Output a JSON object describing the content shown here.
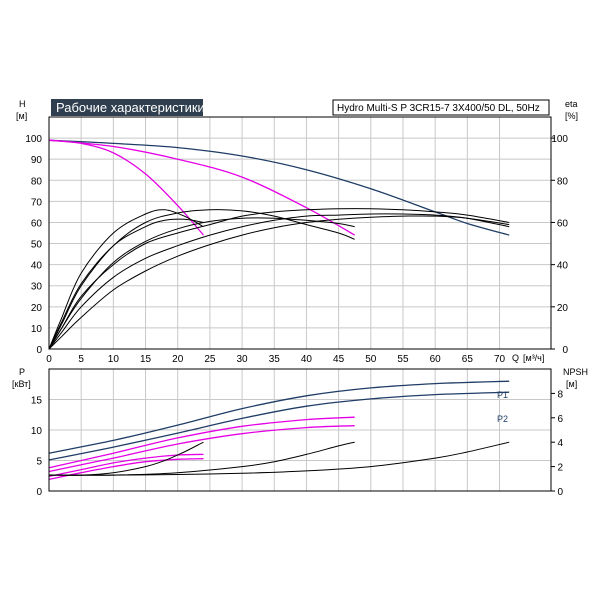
{
  "title": "Рабочие характеристики",
  "model": "Hydro Multi-S P 3CR15-7 3X400/50 DL, 50Hz",
  "colors": {
    "navy": "#1f3d66",
    "magenta": "#e600e6",
    "black": "#000000",
    "grid": "#c8c8c8",
    "title_bg": "#2f3f4f"
  },
  "chart_data": [
    {
      "type": "line",
      "panel": "head",
      "ylabel": "H",
      "yunit": "[м]",
      "y2label": "eta",
      "y2unit": "[%]",
      "xlabel": "Q",
      "xunit": "[м³/ч]",
      "xlim": [
        0,
        78
      ],
      "ylim": [
        0,
        110
      ],
      "y2lim": [
        0,
        110
      ],
      "x_ticks": [
        0,
        5,
        10,
        15,
        20,
        25,
        30,
        35,
        40,
        45,
        50,
        55,
        60,
        65,
        70
      ],
      "y_ticks": [
        0,
        10,
        20,
        30,
        40,
        50,
        60,
        70,
        80,
        90,
        100
      ],
      "y2_ticks": [
        0,
        20,
        40,
        60,
        80,
        100
      ],
      "grid": true,
      "series": [
        {
          "group": "H",
          "color": "navy",
          "x": [
            0,
            10,
            20,
            30,
            40,
            50,
            60,
            65,
            71.5
          ],
          "y": [
            99,
            97.5,
            95.5,
            91.5,
            85,
            76,
            65,
            59.5,
            54
          ]
        },
        {
          "group": "H",
          "color": "magenta",
          "x": [
            0,
            10,
            20,
            30,
            40,
            47.5
          ],
          "y": [
            99,
            96,
            90,
            81.5,
            67,
            54
          ]
        },
        {
          "group": "H",
          "color": "magenta",
          "x": [
            0,
            5,
            10,
            15,
            20,
            24
          ],
          "y": [
            99,
            97.5,
            93,
            83,
            68,
            54
          ]
        },
        {
          "group": "eta",
          "color": "black",
          "x": [
            0,
            2,
            5,
            10,
            15,
            20,
            25,
            30,
            35,
            40,
            45,
            50,
            55,
            60,
            65,
            71.5
          ],
          "y": [
            0,
            10,
            25,
            40,
            50,
            55,
            59,
            63,
            65,
            66,
            66.5,
            66.5,
            66,
            65,
            63.5,
            60
          ]
        },
        {
          "group": "eta",
          "color": "black",
          "x": [
            0,
            2,
            5,
            10,
            15,
            20,
            25,
            30,
            35,
            40,
            45,
            50,
            55,
            60,
            65,
            71.5
          ],
          "y": [
            0,
            8,
            20,
            34,
            43,
            49,
            54,
            58,
            61,
            63,
            63.5,
            64,
            64,
            63.5,
            62,
            58
          ]
        },
        {
          "group": "eta",
          "color": "black",
          "x": [
            0,
            2,
            5,
            10,
            15,
            20,
            25,
            30,
            35,
            40,
            45,
            50,
            55,
            60,
            65,
            71.5
          ],
          "y": [
            0,
            6,
            15,
            28,
            37,
            44,
            49.5,
            54,
            57.5,
            60,
            61.5,
            62.5,
            63,
            63,
            62,
            59
          ]
        },
        {
          "group": "eta",
          "color": "black",
          "x": [
            0,
            2,
            5,
            10,
            15,
            20,
            25,
            30,
            35,
            40,
            45,
            47.5
          ],
          "y": [
            0,
            12,
            30,
            49,
            60,
            64.5,
            66,
            65.5,
            63,
            59,
            55,
            52
          ]
        },
        {
          "group": "eta",
          "color": "black",
          "x": [
            0,
            2,
            5,
            10,
            15,
            20,
            25,
            30,
            35,
            40,
            45,
            47.5
          ],
          "y": [
            0,
            10,
            24,
            41,
            51,
            57,
            60.5,
            62,
            62,
            61,
            59.5,
            58
          ]
        },
        {
          "group": "eta",
          "color": "black",
          "x": [
            0,
            2,
            5,
            10,
            15,
            18,
            21,
            24
          ],
          "y": [
            0,
            15,
            36,
            55,
            64,
            66,
            63,
            58
          ]
        },
        {
          "group": "eta",
          "color": "black",
          "x": [
            0,
            2,
            5,
            10,
            15,
            18,
            21,
            24
          ],
          "y": [
            0,
            13,
            31,
            49,
            58,
            61,
            61.5,
            60
          ]
        }
      ]
    },
    {
      "type": "line",
      "panel": "power",
      "ylabel": "P",
      "yunit": "[кВт]",
      "y2label": "NPSH",
      "y2unit": "[м]",
      "xlim": [
        0,
        78
      ],
      "ylim": [
        0,
        20
      ],
      "y2lim": [
        0,
        10
      ],
      "y_ticks": [
        0,
        5,
        10,
        15
      ],
      "y2_ticks": [
        0,
        2,
        4,
        6,
        8
      ],
      "grid": true,
      "series": [
        {
          "name": "P1",
          "color": "navy",
          "x": [
            0,
            10,
            20,
            30,
            40,
            50,
            60,
            71.5
          ],
          "y": [
            6.2,
            8.3,
            10.8,
            13.5,
            15.6,
            16.9,
            17.6,
            18
          ]
        },
        {
          "name": "P2",
          "color": "navy",
          "x": [
            0,
            10,
            20,
            30,
            40,
            50,
            60,
            71.5
          ],
          "y": [
            5.1,
            7.2,
            9.5,
            11.9,
            13.9,
            15.1,
            15.8,
            16.2
          ]
        },
        {
          "color": "magenta",
          "x": [
            0,
            10,
            20,
            30,
            40,
            47.5
          ],
          "y": [
            3.8,
            6.2,
            8.7,
            10.6,
            11.7,
            12.1
          ]
        },
        {
          "color": "magenta",
          "x": [
            0,
            10,
            20,
            30,
            40,
            47.5
          ],
          "y": [
            3.2,
            5.4,
            7.7,
            9.4,
            10.4,
            10.7
          ]
        },
        {
          "color": "magenta",
          "x": [
            0,
            5,
            10,
            15,
            20,
            24
          ],
          "y": [
            2.4,
            3.5,
            4.6,
            5.4,
            5.9,
            6.0
          ]
        },
        {
          "color": "magenta",
          "x": [
            0,
            5,
            10,
            15,
            20,
            24
          ],
          "y": [
            1.9,
            3.0,
            4.0,
            4.8,
            5.2,
            5.3
          ]
        },
        {
          "group": "NPSH",
          "color": "black",
          "x": [
            0,
            10,
            20,
            30,
            40,
            50,
            60,
            65,
            71.5
          ],
          "y": [
            1.3,
            1.3,
            1.35,
            1.45,
            1.65,
            2.0,
            2.7,
            3.2,
            4.0
          ]
        },
        {
          "group": "NPSH",
          "color": "black",
          "x": [
            0,
            10,
            20,
            30,
            35,
            40,
            45,
            47.5
          ],
          "y": [
            1.3,
            1.3,
            1.5,
            2.0,
            2.4,
            3.0,
            3.7,
            4.0
          ]
        },
        {
          "group": "NPSH",
          "color": "black",
          "x": [
            0,
            5,
            10,
            15,
            18,
            21,
            24
          ],
          "y": [
            1.3,
            1.3,
            1.5,
            2.0,
            2.5,
            3.2,
            4.0
          ]
        }
      ],
      "annotations": [
        "P1",
        "P2"
      ]
    }
  ]
}
